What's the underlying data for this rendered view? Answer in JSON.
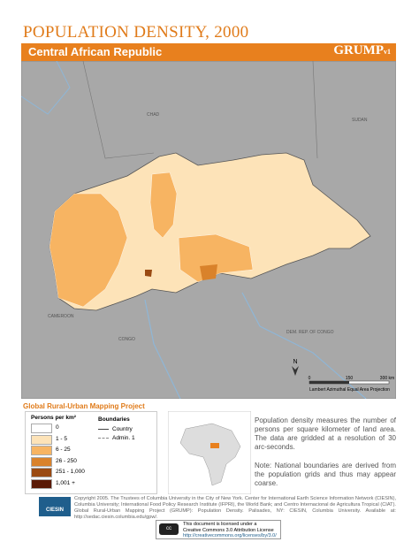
{
  "header": {
    "title": "POPULATION DENSITY, 2000",
    "subtitle": "Central African Republic",
    "logo": "GRUMP",
    "logo_version": "v1"
  },
  "map": {
    "labels": [
      "CHAD",
      "SUDAN",
      "CAMEROON",
      "CONGO",
      "DEM. REP. OF CONGO"
    ],
    "north": "N",
    "scale_labels": [
      "0",
      "150",
      "300 km"
    ],
    "projection": "Lambert Azimuthal Equal Area Projection"
  },
  "project": "Global Rural-Urban Mapping Project",
  "legend": {
    "title": "Persons per km²",
    "classes": [
      {
        "label": "0",
        "color": "#ffffff"
      },
      {
        "label": "1 - 5",
        "color": "#fde3b8"
      },
      {
        "label": "6 - 25",
        "color": "#f7b462"
      },
      {
        "label": "26 - 250",
        "color": "#d9822b"
      },
      {
        "label": "251 - 1,000",
        "color": "#9a4a12"
      },
      {
        "label": "1,001 +",
        "color": "#5a1a06"
      }
    ]
  },
  "boundaries": {
    "title": "Boundaries",
    "items": [
      "Country",
      "Admin. 1"
    ]
  },
  "description": "Population density measures the number of persons per square kilometer of land area. The data are gridded at a resolution of 30 arc-seconds.",
  "note": "Note: National boundaries are derived from the population grids and thus may appear coarse.",
  "copyright": "Copyright 2005. The Trustees of Columbia University in the City of New York. Center for International Earth Science Information Network (CIESIN), Columbia University; International Food Policy Research Institute (IFPRI), the World Bank; and Centro Internacional de Agricultura Tropical (CIAT). Global Rural-Urban Mapping Project (GRUMP): Population Density. Palisades, NY: CIESIN, Columbia University. Available at: http://sedac.ciesin.columbia.edu/gpw/.",
  "logos": [
    "CIESIN"
  ],
  "license": [
    "This document is licensed under a",
    "Creative Commons 3.0 Attribution License",
    "http://creativecommons.org/licenses/by/3.0/"
  ]
}
